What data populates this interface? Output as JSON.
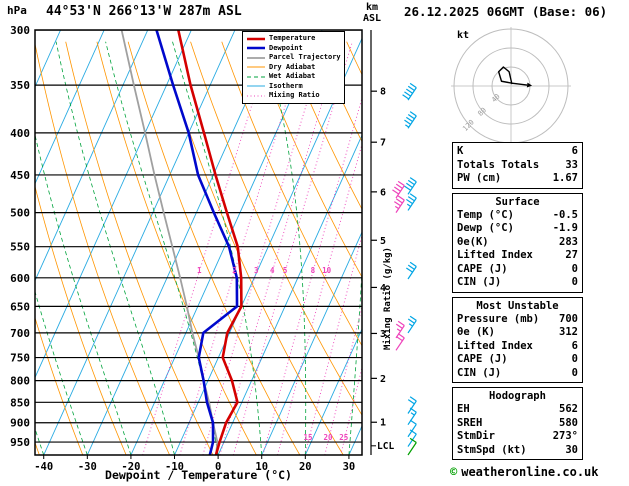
{
  "header": {
    "station": "44°53'N 266°13'W 287m ASL",
    "datetime": "26.12.2025 06GMT (Base: 06)",
    "pressure_unit": "hPa",
    "alt_unit_line1": "km",
    "alt_unit_line2": "ASL"
  },
  "axes": {
    "pressure_ticks": [
      300,
      350,
      400,
      450,
      500,
      550,
      600,
      650,
      700,
      750,
      800,
      850,
      900,
      950
    ],
    "temp_ticks": [
      -40,
      -30,
      -20,
      -10,
      0,
      10,
      20,
      30
    ],
    "km_ticks": [
      1,
      2,
      3,
      4,
      5,
      6,
      7,
      8
    ],
    "xlabel": "Dewpoint / Temperature (°C)",
    "mixing_ratio_label": "Mixing Ratio (g/kg)",
    "mixing_ratio_values": [
      1,
      2,
      3,
      4,
      5,
      8,
      10,
      15,
      20,
      25
    ],
    "lcl_label": "LCL"
  },
  "legend": [
    {
      "label": "Temperature",
      "color": "#d40000",
      "width": 2.6,
      "dash": ""
    },
    {
      "label": "Dewpoint",
      "color": "#0008cc",
      "width": 2.6,
      "dash": ""
    },
    {
      "label": "Parcel Trajectory",
      "color": "#a0a0a0",
      "width": 1.8,
      "dash": ""
    },
    {
      "label": "Dry Adiabat",
      "color": "#ff9500",
      "width": 1,
      "dash": ""
    },
    {
      "label": "Wet Adiabat",
      "color": "#00a33c",
      "width": 1,
      "dash": "4 3"
    },
    {
      "label": "Isotherm",
      "color": "#29abe2",
      "width": 1,
      "dash": ""
    },
    {
      "label": "Mixing Ratio",
      "color": "#ee44bb",
      "width": 1,
      "dash": "1 2.5"
    }
  ],
  "chart_data": {
    "type": "skewt_sounding",
    "pressure_unit": "hPa",
    "temperature_unit": "°C",
    "pressure_range": [
      300,
      985
    ],
    "temp_axis_range": [
      -42,
      33
    ],
    "lcl_pressure_hpa": 960,
    "sounding": {
      "pressure_hpa": [
        985,
        950,
        900,
        850,
        800,
        750,
        700,
        650,
        600,
        550,
        500,
        450,
        400,
        350,
        300
      ],
      "temperature_c": [
        -0.5,
        -1.0,
        -1.5,
        -1.0,
        -4.5,
        -9.0,
        -10.5,
        -10.0,
        -13.0,
        -17.0,
        -23.0,
        -29.5,
        -36.5,
        -44.5,
        -53.0
      ],
      "dewpoint_c": [
        -1.9,
        -2.5,
        -4.5,
        -8.0,
        -11.0,
        -14.5,
        -16.0,
        -11.0,
        -14.0,
        -19.0,
        -26.0,
        -33.5,
        -40.0,
        -48.5,
        -58.0
      ],
      "parcel_c": [
        -0.5,
        -1.5,
        -4.5,
        -7.5,
        -11.0,
        -14.5,
        -18.5,
        -22.5,
        -27.0,
        -32.0,
        -37.5,
        -43.5,
        -50.0,
        -57.5,
        -66.0
      ]
    },
    "winds": [
      {
        "pressure_hpa": 365,
        "speed_kt": 50,
        "color": "cyan"
      },
      {
        "pressure_hpa": 395,
        "speed_kt": 45,
        "color": "cyan"
      },
      {
        "pressure_hpa": 475,
        "speed_kt": 40,
        "color": "cyan"
      },
      {
        "pressure_hpa": 497,
        "speed_kt": 35,
        "color": "cyan"
      },
      {
        "pressure_hpa": 480,
        "speed_kt": 40,
        "color": "magenta"
      },
      {
        "pressure_hpa": 500,
        "speed_kt": 35,
        "color": "magenta"
      },
      {
        "pressure_hpa": 602,
        "speed_kt": 30,
        "color": "cyan"
      },
      {
        "pressure_hpa": 700,
        "speed_kt": 25,
        "color": "cyan"
      },
      {
        "pressure_hpa": 710,
        "speed_kt": 25,
        "color": "magenta"
      },
      {
        "pressure_hpa": 735,
        "speed_kt": 20,
        "color": "magenta"
      },
      {
        "pressure_hpa": 877,
        "speed_kt": 20,
        "color": "cyan"
      },
      {
        "pressure_hpa": 905,
        "speed_kt": 15,
        "color": "cyan"
      },
      {
        "pressure_hpa": 936,
        "speed_kt": 10,
        "color": "cyan"
      },
      {
        "pressure_hpa": 962,
        "speed_kt": 10,
        "color": "cyan"
      },
      {
        "pressure_hpa": 985,
        "speed_kt": 10,
        "color": "green"
      }
    ]
  },
  "hodograph": {
    "unit": "kt",
    "ring_speeds_kt": [
      40,
      80,
      120
    ],
    "trace_uv_kt": [
      [
        2,
        4
      ],
      [
        -4,
        30
      ],
      [
        -16,
        40
      ],
      [
        -26,
        30
      ],
      [
        -20,
        10
      ],
      [
        2,
        6
      ],
      [
        34,
        2
      ]
    ]
  },
  "panel": {
    "tables": [
      {
        "title": null,
        "rows": [
          [
            "K",
            "6"
          ],
          [
            "Totals Totals",
            "33"
          ],
          [
            "PW (cm)",
            "1.67"
          ]
        ]
      },
      {
        "title": "Surface",
        "rows": [
          [
            "Temp (°C)",
            "-0.5"
          ],
          [
            "Dewp (°C)",
            "-1.9"
          ],
          [
            "θe(K)",
            "283"
          ],
          [
            "Lifted Index",
            "27"
          ],
          [
            "CAPE (J)",
            "0"
          ],
          [
            "CIN (J)",
            "0"
          ]
        ]
      },
      {
        "title": "Most Unstable",
        "rows": [
          [
            "Pressure (mb)",
            "700"
          ],
          [
            "θe (K)",
            "312"
          ],
          [
            "Lifted Index",
            "6"
          ],
          [
            "CAPE (J)",
            "0"
          ],
          [
            "CIN (J)",
            "0"
          ]
        ]
      },
      {
        "title": "Hodograph",
        "rows": [
          [
            "EH",
            "562"
          ],
          [
            "SREH",
            "580"
          ],
          [
            "StmDir",
            "273°"
          ],
          [
            "StmSpd (kt)",
            "30"
          ]
        ]
      }
    ]
  },
  "footer": {
    "copyright_symbol": "©",
    "copyright_text": "weatheronline.co.uk"
  }
}
